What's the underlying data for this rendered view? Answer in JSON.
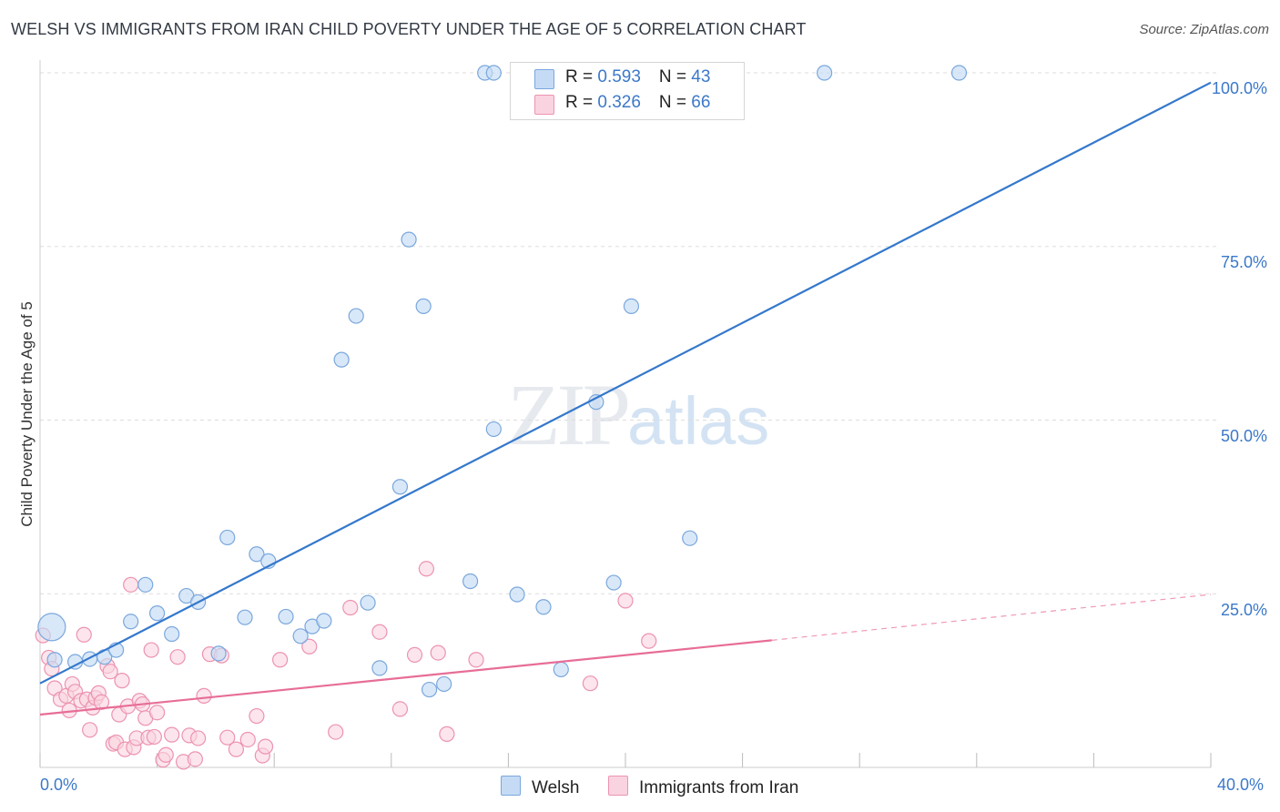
{
  "header": {
    "title": "WELSH VS IMMIGRANTS FROM IRAN CHILD POVERTY UNDER THE AGE OF 5 CORRELATION CHART",
    "source": "Source: ZipAtlas.com"
  },
  "watermark": {
    "zip": "ZIP",
    "atlas": "atlas"
  },
  "legend": {
    "rows": [
      {
        "r_label": "R = ",
        "r_value": "0.593",
        "n_label": "N = ",
        "n_value": "43",
        "color": "#aac8ef"
      },
      {
        "r_label": "R = ",
        "r_value": "0.326",
        "n_label": "N = ",
        "n_value": "66",
        "color": "#f7bfd1"
      }
    ]
  },
  "bottom_legend": {
    "welsh": "Welsh",
    "iran": "Immigrants from Iran"
  },
  "colors": {
    "welsh_fill": "#c5dbf5",
    "welsh_stroke": "#7aa7dd",
    "welsh_line": "#3478cc",
    "iran_fill": "#fad3e0",
    "iran_stroke": "#ec93b0",
    "iran_line": "#e76d97",
    "grid": "#dddddd",
    "tick_text": "#3b78c9"
  },
  "chart_data": {
    "type": "scatter",
    "title": "WELSH VS IMMIGRANTS FROM IRAN CHILD POVERTY UNDER THE AGE OF 5 CORRELATION CHART",
    "xlabel": "",
    "ylabel": "Child Poverty Under the Age of 5",
    "xlim": [
      0,
      40
    ],
    "ylim": [
      0,
      100
    ],
    "x_tick_labels": [
      "0.0%",
      "40.0%"
    ],
    "y_ticks": [
      25,
      50,
      75,
      100
    ],
    "y_tick_labels": [
      "25.0%",
      "50.0%",
      "75.0%",
      "100.0%"
    ],
    "grid": true,
    "series": [
      {
        "name": "Welsh",
        "points": [
          [
            0.4,
            20.2
          ],
          [
            0.5,
            15.5
          ],
          [
            1.2,
            15.2
          ],
          [
            1.7,
            15.6
          ],
          [
            2.2,
            15.9
          ],
          [
            2.6,
            16.9
          ],
          [
            3.1,
            21.0
          ],
          [
            3.6,
            26.3
          ],
          [
            4.0,
            22.2
          ],
          [
            4.5,
            19.2
          ],
          [
            5.0,
            24.7
          ],
          [
            5.4,
            23.8
          ],
          [
            6.1,
            16.4
          ],
          [
            6.4,
            33.1
          ],
          [
            7.0,
            21.6
          ],
          [
            7.4,
            30.7
          ],
          [
            7.8,
            29.7
          ],
          [
            8.4,
            21.7
          ],
          [
            8.9,
            18.9
          ],
          [
            9.3,
            20.3
          ],
          [
            9.7,
            21.1
          ],
          [
            10.3,
            58.7
          ],
          [
            10.8,
            65.0
          ],
          [
            11.2,
            23.7
          ],
          [
            11.6,
            14.3
          ],
          [
            12.3,
            40.4
          ],
          [
            12.6,
            76.0
          ],
          [
            13.1,
            66.4
          ],
          [
            13.3,
            11.2
          ],
          [
            13.8,
            12.0
          ],
          [
            14.7,
            26.8
          ],
          [
            15.5,
            48.7
          ],
          [
            16.3,
            24.9
          ],
          [
            17.2,
            23.1
          ],
          [
            17.8,
            14.1
          ],
          [
            19.0,
            52.6
          ],
          [
            19.6,
            26.6
          ],
          [
            20.2,
            66.4
          ],
          [
            22.2,
            33.0
          ],
          [
            15.2,
            100.0
          ],
          [
            15.5,
            100.0
          ],
          [
            26.8,
            100.0
          ],
          [
            31.4,
            100.0
          ]
        ],
        "trendline": {
          "x": [
            0.0,
            40.0
          ],
          "y": [
            12.1,
            98.6
          ]
        }
      },
      {
        "name": "Immigrants from Iran",
        "points": [
          [
            0.1,
            19.0
          ],
          [
            0.3,
            15.8
          ],
          [
            0.4,
            14.2
          ],
          [
            0.5,
            11.4
          ],
          [
            0.7,
            9.8
          ],
          [
            0.9,
            10.3
          ],
          [
            1.0,
            8.2
          ],
          [
            1.1,
            12.0
          ],
          [
            1.2,
            10.9
          ],
          [
            1.4,
            9.6
          ],
          [
            1.5,
            19.1
          ],
          [
            1.6,
            9.8
          ],
          [
            1.7,
            5.4
          ],
          [
            1.8,
            8.6
          ],
          [
            1.9,
            10.0
          ],
          [
            2.0,
            10.7
          ],
          [
            2.1,
            9.4
          ],
          [
            2.3,
            14.6
          ],
          [
            2.4,
            13.8
          ],
          [
            2.5,
            3.4
          ],
          [
            2.6,
            3.6
          ],
          [
            2.7,
            7.6
          ],
          [
            2.8,
            12.5
          ],
          [
            2.9,
            2.6
          ],
          [
            3.0,
            8.8
          ],
          [
            3.1,
            26.3
          ],
          [
            3.2,
            2.9
          ],
          [
            3.3,
            4.2
          ],
          [
            3.4,
            9.6
          ],
          [
            3.5,
            9.1
          ],
          [
            3.6,
            7.1
          ],
          [
            3.7,
            4.3
          ],
          [
            3.8,
            16.9
          ],
          [
            3.9,
            4.4
          ],
          [
            4.0,
            7.9
          ],
          [
            4.2,
            1.1
          ],
          [
            4.3,
            1.8
          ],
          [
            4.5,
            4.7
          ],
          [
            4.7,
            15.9
          ],
          [
            4.9,
            0.8
          ],
          [
            5.1,
            4.6
          ],
          [
            5.3,
            1.2
          ],
          [
            5.4,
            4.2
          ],
          [
            5.6,
            10.3
          ],
          [
            5.8,
            16.3
          ],
          [
            6.2,
            16.1
          ],
          [
            6.4,
            4.3
          ],
          [
            6.7,
            2.6
          ],
          [
            7.1,
            4.0
          ],
          [
            7.4,
            7.4
          ],
          [
            7.6,
            1.7
          ],
          [
            7.7,
            3.0
          ],
          [
            8.2,
            15.5
          ],
          [
            9.2,
            17.4
          ],
          [
            10.1,
            5.1
          ],
          [
            10.6,
            23.0
          ],
          [
            11.6,
            19.5
          ],
          [
            12.3,
            8.4
          ],
          [
            12.8,
            16.2
          ],
          [
            13.2,
            28.6
          ],
          [
            13.6,
            16.5
          ],
          [
            13.9,
            4.8
          ],
          [
            14.9,
            15.5
          ],
          [
            18.8,
            12.1
          ],
          [
            20.0,
            24.0
          ],
          [
            20.8,
            18.2
          ]
        ],
        "trendline": {
          "x": [
            0.0,
            25.0
          ],
          "y": [
            7.6,
            18.3
          ]
        },
        "trendline_extension": {
          "x": [
            25.0,
            40.0
          ],
          "y": [
            18.3,
            24.9
          ]
        }
      }
    ]
  }
}
